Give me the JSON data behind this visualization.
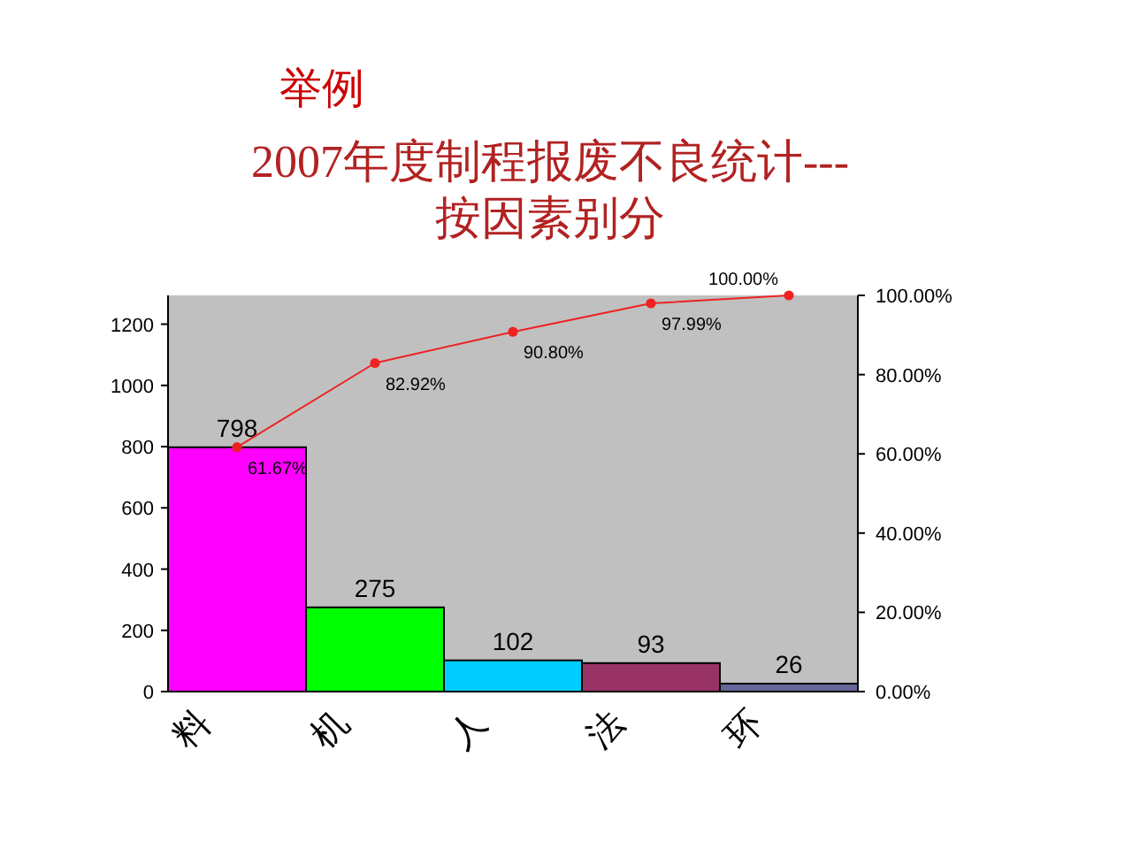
{
  "chart_data": {
    "type": "bar",
    "title": "举例",
    "subtitle": "2007年度制程报废不良统计---按因素别分",
    "categories": [
      "料",
      "机",
      "人",
      "法",
      "环"
    ],
    "series": [
      {
        "colors": [
          "#ff00ff",
          "#00ff00",
          "#00ccff",
          "#993366",
          "#666699"
        ],
        "values": [
          798,
          275,
          102,
          93,
          26
        ]
      },
      {
        "type": "line",
        "axis": "y2",
        "color": "#ee2222",
        "values": [
          61.67,
          82.92,
          90.8,
          97.99,
          100.0
        ],
        "value_labels": [
          "61.67%",
          "82.92%",
          "90.80%",
          "97.99%",
          "100.00%"
        ]
      }
    ],
    "data_labels": true,
    "marker": "circle",
    "grid": false,
    "ylim": [
      0,
      1294
    ],
    "yticks": [
      0,
      200,
      400,
      600,
      800,
      1000,
      1200
    ],
    "y2lim": [
      0,
      100
    ],
    "y2ticks": [
      {
        "value": 0,
        "label": "0.00%"
      },
      {
        "value": 20,
        "label": "20.00%"
      },
      {
        "value": 40,
        "label": "40.00%"
      },
      {
        "value": 60,
        "label": "60.00%"
      },
      {
        "value": 80,
        "label": "80.00%"
      },
      {
        "value": 100,
        "label": "100.00%"
      }
    ]
  }
}
